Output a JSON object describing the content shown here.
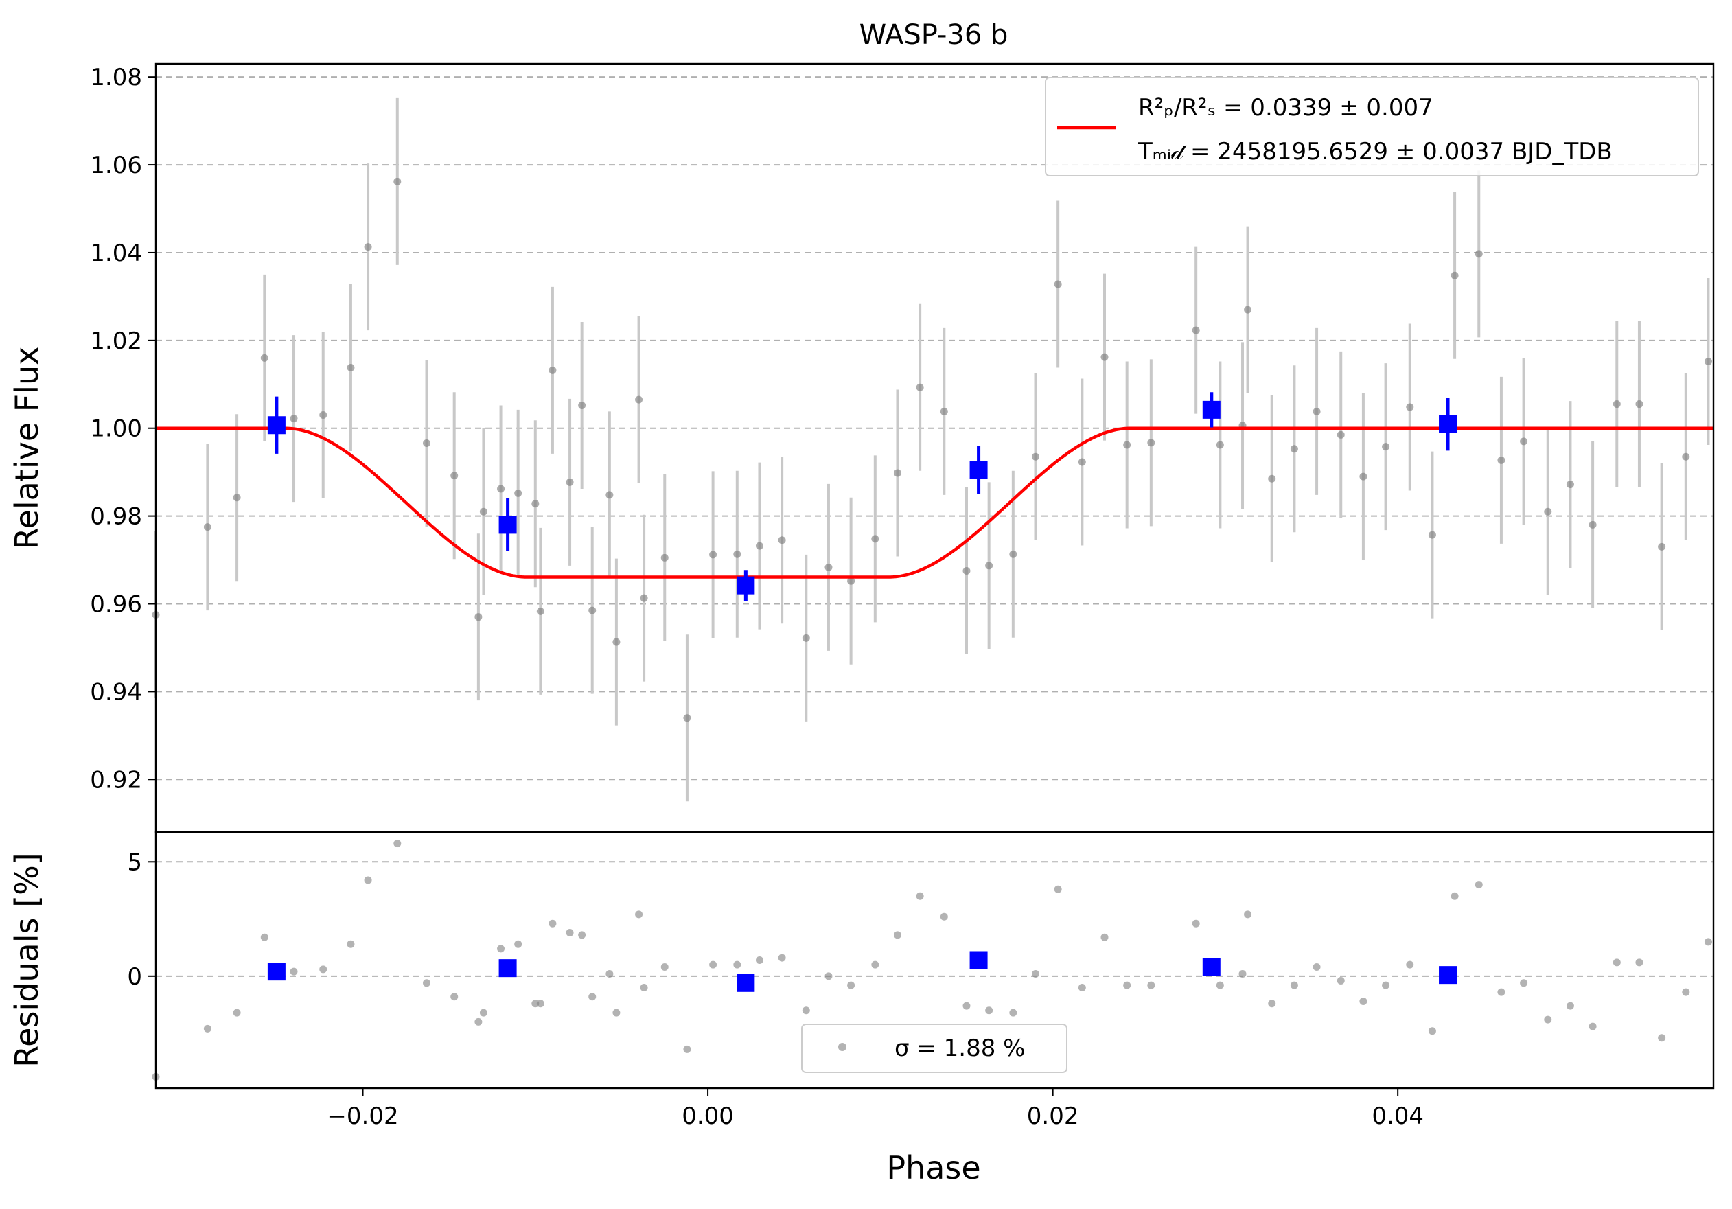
{
  "chart_data": {
    "type": "scatter",
    "title": "WASP-36 b",
    "colors": {
      "data": "#808080",
      "errorbar": "#c8c8c8",
      "binned": "#0000ff",
      "model": "#ff0000",
      "grid": "#b0b0b0"
    },
    "top_panel": {
      "ylabel": "Relative Flux",
      "ylim": [
        0.908,
        1.083
      ],
      "yticks": [
        0.92,
        0.94,
        0.96,
        0.98,
        1.0,
        1.02,
        1.04,
        1.06,
        1.08
      ],
      "ytick_labels": [
        "0.92",
        "0.94",
        "0.96",
        "0.98",
        "1.00",
        "1.02",
        "1.04",
        "1.06",
        "1.08"
      ],
      "grid": "y-dashed",
      "legend": {
        "placement": "top-right",
        "line1": "R²ₚ/R²ₛ = 0.0339 ± 0.007",
        "line2": "Tₘᵢ𝒹 = 2458195.6529 ± 0.0037 BJD_TDB"
      },
      "errorbar": 0.019,
      "data": [
        [
          -0.032,
          0.9575
        ],
        [
          -0.029,
          0.9775
        ],
        [
          -0.0273,
          0.9842
        ],
        [
          -0.0257,
          1.016
        ],
        [
          -0.024,
          1.0022
        ],
        [
          -0.0223,
          1.003
        ],
        [
          -0.0207,
          1.0138
        ],
        [
          -0.0197,
          1.0413
        ],
        [
          -0.018,
          1.0562
        ],
        [
          -0.0163,
          0.9966
        ],
        [
          -0.0147,
          0.9892
        ],
        [
          -0.013,
          0.981
        ],
        [
          -0.01,
          0.9828
        ],
        [
          -0.009,
          1.0132
        ],
        [
          -0.0073,
          1.0052
        ],
        [
          -0.0057,
          0.9848
        ],
        [
          -0.004,
          1.0065
        ],
        [
          -0.0133,
          0.957
        ],
        [
          -0.012,
          0.9862
        ],
        [
          -0.011,
          0.9852
        ],
        [
          -0.0097,
          0.9583
        ],
        [
          -0.008,
          0.9877
        ],
        [
          -0.0067,
          0.9585
        ],
        [
          -0.0053,
          0.9513
        ],
        [
          -0.0037,
          0.9613
        ],
        [
          -0.0025,
          0.9705
        ],
        [
          -0.0012,
          0.934
        ],
        [
          0.0003,
          0.9712
        ],
        [
          0.0017,
          0.9713
        ],
        [
          0.003,
          0.9732
        ],
        [
          0.0043,
          0.9745
        ],
        [
          0.0057,
          0.9522
        ],
        [
          0.007,
          0.9683
        ],
        [
          0.0083,
          0.9652
        ],
        [
          0.0097,
          0.9748
        ],
        [
          0.011,
          0.9898
        ],
        [
          0.0123,
          1.0093
        ],
        [
          0.0137,
          1.0038
        ],
        [
          0.015,
          0.9675
        ],
        [
          0.0163,
          0.9687
        ],
        [
          0.0177,
          0.9713
        ],
        [
          0.019,
          0.9935
        ],
        [
          0.0203,
          1.0328
        ],
        [
          0.0217,
          0.9923
        ],
        [
          0.023,
          1.0162
        ],
        [
          0.0243,
          0.9962
        ],
        [
          0.0257,
          0.9967
        ],
        [
          0.0283,
          1.0223
        ],
        [
          0.0297,
          0.9962
        ],
        [
          0.031,
          1.0006
        ],
        [
          0.0313,
          1.027
        ],
        [
          0.0327,
          0.9885
        ],
        [
          0.034,
          0.9953
        ],
        [
          0.0353,
          1.0038
        ],
        [
          0.0367,
          0.9985
        ],
        [
          0.038,
          0.989
        ],
        [
          0.0393,
          0.9958
        ],
        [
          0.0407,
          1.0048
        ],
        [
          0.042,
          0.9757
        ],
        [
          0.0433,
          1.0348
        ],
        [
          0.0447,
          1.0397
        ],
        [
          0.046,
          0.9927
        ],
        [
          0.0473,
          0.997
        ],
        [
          0.0487,
          0.981
        ],
        [
          0.05,
          0.9872
        ],
        [
          0.0513,
          0.978
        ],
        [
          0.0527,
          1.0055
        ],
        [
          0.054,
          1.0055
        ],
        [
          0.0553,
          0.973
        ],
        [
          0.0567,
          0.9935
        ],
        [
          0.058,
          1.0152
        ]
      ],
      "binned": [
        {
          "x": -0.025,
          "y": 1.0007,
          "err": 0.0065
        },
        {
          "x": -0.0116,
          "y": 0.978,
          "err": 0.006
        },
        {
          "x": 0.0022,
          "y": 0.9642,
          "err": 0.0035
        },
        {
          "x": 0.0157,
          "y": 0.9905,
          "err": 0.0055
        },
        {
          "x": 0.0292,
          "y": 1.0042,
          "err": 0.004
        },
        {
          "x": 0.0429,
          "y": 1.0009,
          "err": 0.006
        }
      ],
      "model": {
        "depth": 0.0339,
        "t14_half": 0.0245,
        "t23_half": 0.0105
      }
    },
    "bottom_panel": {
      "ylabel": "Residuals [%]",
      "ylim": [
        -4.9,
        6.3
      ],
      "yticks": [
        0,
        5
      ],
      "ytick_labels": [
        "0",
        "5"
      ],
      "legend": {
        "placement": "bottom-center",
        "label": "σ = 1.88 %"
      },
      "data": [
        [
          -0.032,
          -4.4
        ],
        [
          -0.029,
          -2.3
        ],
        [
          -0.0273,
          -1.6
        ],
        [
          -0.0257,
          1.7
        ],
        [
          -0.024,
          0.2
        ],
        [
          -0.0223,
          0.3
        ],
        [
          -0.0207,
          1.4
        ],
        [
          -0.0197,
          4.2
        ],
        [
          -0.018,
          5.8
        ],
        [
          -0.0163,
          -0.3
        ],
        [
          -0.0147,
          -0.9
        ],
        [
          -0.013,
          -1.6
        ],
        [
          -0.01,
          -1.2
        ],
        [
          -0.009,
          2.3
        ],
        [
          -0.0073,
          1.8
        ],
        [
          -0.0057,
          0.1
        ],
        [
          -0.004,
          2.7
        ],
        [
          -0.0133,
          -2.0
        ],
        [
          -0.012,
          1.2
        ],
        [
          -0.011,
          1.4
        ],
        [
          -0.0097,
          -1.2
        ],
        [
          -0.008,
          1.9
        ],
        [
          -0.0067,
          -0.9
        ],
        [
          -0.0053,
          -1.6
        ],
        [
          -0.0037,
          -0.5
        ],
        [
          -0.0025,
          0.4
        ],
        [
          -0.0012,
          -3.2
        ],
        [
          0.0003,
          0.5
        ],
        [
          0.0017,
          0.5
        ],
        [
          0.003,
          0.7
        ],
        [
          0.0043,
          0.8
        ],
        [
          0.0057,
          -1.5
        ],
        [
          0.007,
          0.0
        ],
        [
          0.0083,
          -0.4
        ],
        [
          0.0097,
          0.5
        ],
        [
          0.011,
          1.8
        ],
        [
          0.0123,
          3.5
        ],
        [
          0.0137,
          2.6
        ],
        [
          0.015,
          -1.3
        ],
        [
          0.0163,
          -1.5
        ],
        [
          0.0177,
          -1.6
        ],
        [
          0.019,
          0.1
        ],
        [
          0.0203,
          3.8
        ],
        [
          0.0217,
          -0.5
        ],
        [
          0.023,
          1.7
        ],
        [
          0.0243,
          -0.4
        ],
        [
          0.0257,
          -0.4
        ],
        [
          0.0283,
          2.3
        ],
        [
          0.0297,
          -0.4
        ],
        [
          0.031,
          0.1
        ],
        [
          0.0313,
          2.7
        ],
        [
          0.0327,
          -1.2
        ],
        [
          0.034,
          -0.4
        ],
        [
          0.0353,
          0.4
        ],
        [
          0.0367,
          -0.2
        ],
        [
          0.038,
          -1.1
        ],
        [
          0.0393,
          -0.4
        ],
        [
          0.0407,
          0.5
        ],
        [
          0.042,
          -2.4
        ],
        [
          0.0433,
          3.5
        ],
        [
          0.0447,
          4.0
        ],
        [
          0.046,
          -0.7
        ],
        [
          0.0473,
          -0.3
        ],
        [
          0.0487,
          -1.9
        ],
        [
          0.05,
          -1.3
        ],
        [
          0.0513,
          -2.2
        ],
        [
          0.0527,
          0.6
        ],
        [
          0.054,
          0.6
        ],
        [
          0.0553,
          -2.7
        ],
        [
          0.0567,
          -0.7
        ],
        [
          0.058,
          1.5
        ]
      ],
      "binned": [
        {
          "x": -0.025,
          "y": 0.2
        },
        {
          "x": -0.0116,
          "y": 0.35
        },
        {
          "x": 0.0022,
          "y": -0.3
        },
        {
          "x": 0.0157,
          "y": 0.7
        },
        {
          "x": 0.0292,
          "y": 0.4
        },
        {
          "x": 0.0429,
          "y": 0.05
        }
      ]
    },
    "xlabel": "Phase",
    "xlim": [
      -0.032,
      0.0583
    ],
    "xticks": [
      -0.02,
      0.0,
      0.02,
      0.04
    ],
    "xtick_labels": [
      "−0.02",
      "0.00",
      "0.02",
      "0.04"
    ]
  }
}
